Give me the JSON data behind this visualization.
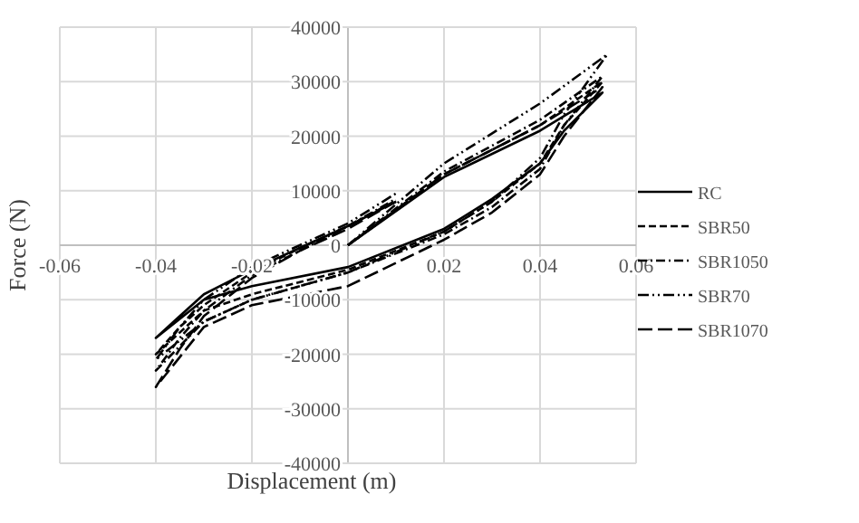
{
  "chart_data": {
    "type": "line",
    "xlabel": "Displacement (m)",
    "ylabel": "Force (N)",
    "xlim": [
      -0.06,
      0.06
    ],
    "xticks": [
      -0.06,
      -0.04,
      -0.02,
      {
        "value": 0,
        "label": null
      },
      0.02,
      0.04,
      0.06
    ],
    "ylim": [
      -40000,
      40000
    ],
    "yticks": [
      -40000,
      -30000,
      -20000,
      -10000,
      0,
      10000,
      20000,
      30000,
      40000
    ],
    "grid": true,
    "legend": "right",
    "series": [
      {
        "name": "RC",
        "color": "#000000",
        "line_style": "solid",
        "x": [
          0,
          0.02,
          0.04,
          0.053,
          0.045,
          0.04,
          0.03,
          0.02,
          0,
          -0.02,
          -0.03,
          -0.04,
          -0.035,
          -0.03,
          -0.02,
          -0.01,
          0,
          0.01
        ],
        "values": [
          0,
          12500,
          21000,
          28000,
          21000,
          15000,
          8500,
          3000,
          -4000,
          -7500,
          -10000,
          -17000,
          -13000,
          -9000,
          -4500,
          -500,
          3500,
          8000
        ]
      },
      {
        "name": "SBR50",
        "color": "#000000",
        "line_style": "dashed",
        "x": [
          0,
          0.02,
          0.04,
          0.053,
          0.045,
          0.04,
          0.03,
          0.02,
          0,
          -0.02,
          -0.03,
          -0.04,
          -0.035,
          -0.03,
          -0.02,
          -0.01,
          0,
          0.01
        ],
        "values": [
          0,
          13000,
          22000,
          30000,
          22000,
          15000,
          8000,
          2500,
          -4500,
          -9000,
          -12000,
          -20000,
          -15000,
          -11000,
          -5000,
          -500,
          3500,
          8200
        ]
      },
      {
        "name": "SBR1050",
        "color": "#000000",
        "line_style": "dashdot",
        "x": [
          0,
          0.02,
          0.04,
          0.053,
          0.045,
          0.04,
          0.03,
          0.02,
          0,
          -0.02,
          -0.03,
          -0.04,
          -0.035,
          -0.03,
          -0.02,
          -0.01,
          0,
          0.01
        ],
        "values": [
          0,
          13500,
          23000,
          31000,
          22000,
          14000,
          7000,
          2000,
          -5000,
          -10000,
          -14000,
          -23000,
          -17000,
          -12000,
          -5500,
          -1000,
          3500,
          8500
        ]
      },
      {
        "name": "SBR70",
        "color": "#000000",
        "line_style": "dashdotdot",
        "x": [
          0,
          0.02,
          0.04,
          0.054,
          0.045,
          0.04,
          0.03,
          0.02,
          0,
          -0.02,
          -0.03,
          -0.04,
          -0.035,
          -0.03,
          -0.02,
          -0.01,
          0,
          0.01
        ],
        "values": [
          0,
          15000,
          26000,
          35000,
          24000,
          16000,
          8000,
          2500,
          -5000,
          -10000,
          -14000,
          -21000,
          -15000,
          -10000,
          -4000,
          0,
          4000,
          9500
        ]
      },
      {
        "name": "SBR1070",
        "color": "#000000",
        "line_style": "longdash",
        "x": [
          0,
          0.02,
          0.04,
          0.053,
          0.045,
          0.04,
          0.03,
          0.02,
          0,
          -0.02,
          -0.03,
          -0.04,
          -0.035,
          -0.03,
          -0.02,
          -0.01,
          0,
          0.01
        ],
        "values": [
          0,
          13000,
          22000,
          29000,
          20000,
          13000,
          6000,
          1000,
          -7500,
          -11000,
          -15000,
          -26000,
          -19000,
          -13000,
          -6000,
          -1000,
          3000,
          8000
        ]
      }
    ]
  }
}
